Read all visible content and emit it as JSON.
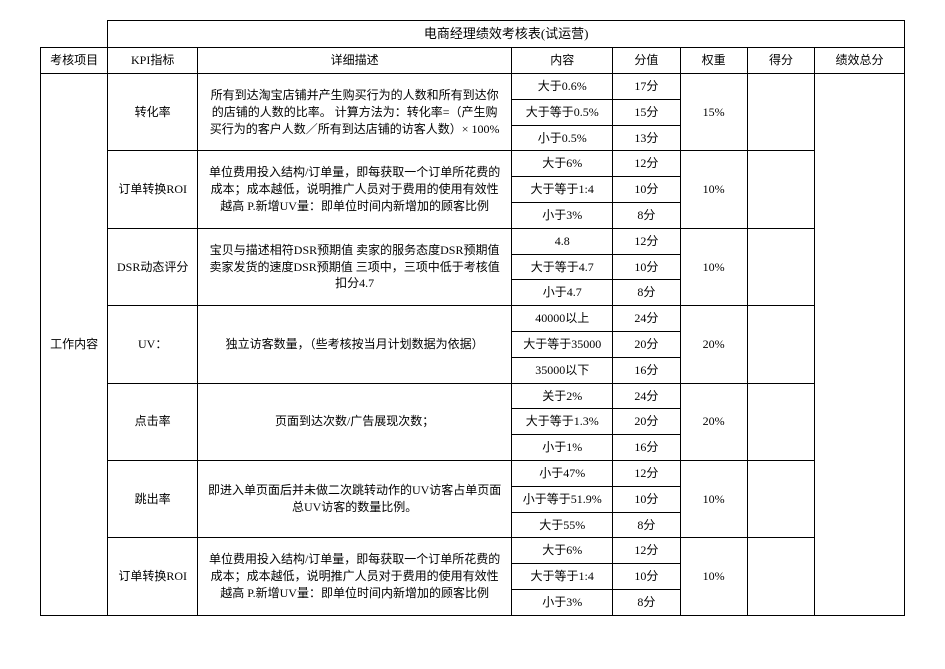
{
  "title": "电商经理绩效考核表(试运营)",
  "headers": {
    "col_proj": "考核项目",
    "col_kpi": "KPI指标",
    "col_desc": "详细描述",
    "col_content": "内容",
    "col_score": "分值",
    "col_weight": "权重",
    "col_defen": "得分",
    "col_total": "绩效总分"
  },
  "category": "工作内容",
  "rows": [
    {
      "kpi": "转化率",
      "desc": "所有到达淘宝店铺并产生购买行为的人数和所有到达你的店铺的人数的比率。\n计算方法为：转化率=（产生购买行为的客户人数／所有到达店铺的访客人数）× 100%",
      "tiers": [
        {
          "content": "大于0.6%",
          "score": "17分"
        },
        {
          "content": "大于等于0.5%",
          "score": "15分"
        },
        {
          "content": "小于0.5%",
          "score": "13分"
        }
      ],
      "weight": "15%"
    },
    {
      "kpi": "订单转换ROI",
      "desc": "单位费用投入结构/订单量，即每获取一个订单所花费的成本；成本越低，说明推广人员对于费用的使用有效性越高 P.新增UV量：即单位时间内新增加的顾客比例",
      "tiers": [
        {
          "content": "大于6%",
          "score": "12分"
        },
        {
          "content": "大于等于1:4",
          "score": "10分"
        },
        {
          "content": "小于3%",
          "score": "8分"
        }
      ],
      "weight": "10%"
    },
    {
      "kpi": "DSR动态评分",
      "desc": "宝贝与描述相符DSR预期值 卖家的服务态度DSR预期值 卖家发货的速度DSR预期值\n三项中，三项中低于考核值扣分4.7",
      "tiers": [
        {
          "content": "4.8",
          "score": "12分"
        },
        {
          "content": "大于等于4.7",
          "score": "10分"
        },
        {
          "content": "小于4.7",
          "score": "8分"
        }
      ],
      "weight": "10%"
    },
    {
      "kpi": "UV：",
      "desc": "独立访客数量，（些考核按当月计划数据为依据）",
      "tiers": [
        {
          "content": "40000以上",
          "score": "24分"
        },
        {
          "content": "大于等于35000",
          "score": "20分"
        },
        {
          "content": "35000以下",
          "score": "16分"
        }
      ],
      "weight": "20%"
    },
    {
      "kpi": "点击率",
      "desc": "页面到达次数/广告展现次数；",
      "tiers": [
        {
          "content": "关于2%",
          "score": "24分"
        },
        {
          "content": "大于等于1.3%",
          "score": "20分"
        },
        {
          "content": "小于1%",
          "score": "16分"
        }
      ],
      "weight": "20%"
    },
    {
      "kpi": "跳出率",
      "desc": "即进入单页面后并未做二次跳转动作的UV访客占单页面总UV访客的数量比例。",
      "tiers": [
        {
          "content": "小于47%",
          "score": "12分"
        },
        {
          "content": "小于等于51.9%",
          "score": "10分"
        },
        {
          "content": "大于55%",
          "score": "8分"
        }
      ],
      "weight": "10%"
    },
    {
      "kpi": "订单转换ROI",
      "desc": "单位费用投入结构/订单量，即每获取一个订单所花费的成本；成本越低，说明推广人员对于费用的使用有效性越高 P.新增UV量：即单位时间内新增加的顾客比例",
      "tiers": [
        {
          "content": "大于6%",
          "score": "12分"
        },
        {
          "content": "大于等于1:4",
          "score": "10分"
        },
        {
          "content": "小于3%",
          "score": "8分"
        }
      ],
      "weight": "10%"
    }
  ]
}
